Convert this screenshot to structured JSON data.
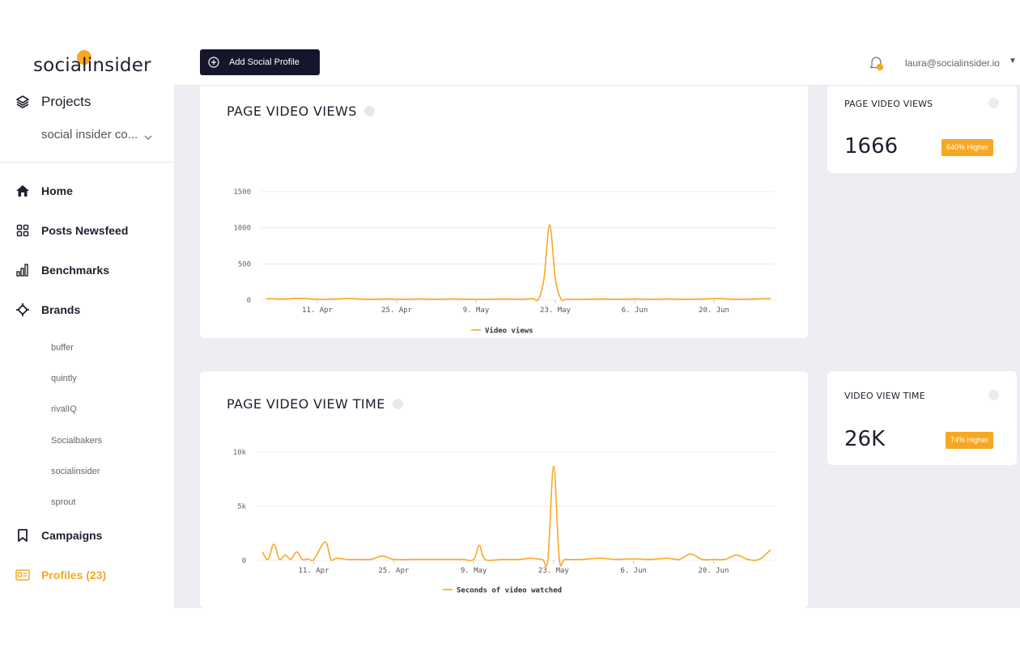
{
  "app": {
    "logo_text": "socialinsider",
    "brand_color": "#f7a823",
    "dark_color": "#15152b"
  },
  "sidebar": {
    "projects_label": "Projects",
    "project_selector": "social insider co...",
    "nav": [
      {
        "label": "Home",
        "icon": "home-icon"
      },
      {
        "label": "Posts Newsfeed",
        "icon": "grid-icon"
      },
      {
        "label": "Benchmarks",
        "icon": "bar-chart-icon"
      },
      {
        "label": "Brands",
        "icon": "crosshair-icon"
      }
    ],
    "brands": [
      "buffer",
      "quintly",
      "rivalIQ",
      "Socialbakers",
      "socialinsider",
      "sprout"
    ],
    "campaigns_label": "Campaigns",
    "profiles_label": "Profiles (23)"
  },
  "topbar": {
    "add_profile_label": "Add Social Profile",
    "user_email": "laura@socialinsider.io"
  },
  "cards": {
    "video_views": {
      "title": "PAGE VIDEO VIEWS",
      "legend": "Video views"
    },
    "video_view_time": {
      "title": "PAGE VIDEO VIEW TIME",
      "legend": "Seconds of video watched"
    }
  },
  "stats": {
    "views": {
      "title": "PAGE VIDEO VIEWS",
      "value": "1666",
      "badge": "640% Higher"
    },
    "time": {
      "title": "VIDEO VIEW TIME",
      "value": "26K",
      "badge": "74% Higher"
    }
  },
  "chart_data": [
    {
      "type": "line",
      "title": "PAGE VIDEO VIEWS",
      "x_tick_labels": [
        "11. Apr",
        "25. Apr",
        "9. May",
        "23. May",
        "6. Jun",
        "20. Jun"
      ],
      "y_tick_labels": [
        "0",
        "500",
        "1000",
        "1500"
      ],
      "ylim": [
        0,
        1500
      ],
      "legend": "bottom-center",
      "series": [
        {
          "name": "Video views",
          "color": "#f7a823",
          "x": [
            "2 Apr",
            "5 Apr",
            "8 Apr",
            "11 Apr",
            "14 Apr",
            "17 Apr",
            "20 Apr",
            "23 Apr",
            "26 Apr",
            "29 Apr",
            "2 May",
            "5 May",
            "8 May",
            "11 May",
            "14 May",
            "17 May",
            "19 May",
            "20 May",
            "21 May",
            "22 May",
            "23 May",
            "24 May",
            "25 May",
            "28 May",
            "31 May",
            "3 Jun",
            "6 Jun",
            "9 Jun",
            "12 Jun",
            "15 Jun",
            "18 Jun",
            "21 Jun",
            "24 Jun",
            "27 Jun",
            "30 Jun"
          ],
          "values": [
            20,
            15,
            25,
            10,
            15,
            20,
            10,
            15,
            10,
            15,
            10,
            15,
            10,
            10,
            15,
            10,
            20,
            10,
            300,
            1040,
            300,
            15,
            10,
            10,
            15,
            10,
            15,
            10,
            15,
            10,
            15,
            20,
            10,
            15,
            20
          ]
        }
      ]
    },
    {
      "type": "line",
      "title": "PAGE VIDEO VIEW TIME",
      "x_tick_labels": [
        "11. Apr",
        "25. Apr",
        "9. May",
        "23. May",
        "6. Jun",
        "20. Jun"
      ],
      "y_tick_labels": [
        "0",
        "5k",
        "10k"
      ],
      "ylim": [
        0,
        10000
      ],
      "legend": "bottom-center",
      "series": [
        {
          "name": "Seconds of video watched",
          "color": "#f7a823",
          "x": [
            "2 Apr",
            "3 Apr",
            "4 Apr",
            "5 Apr",
            "6 Apr",
            "7 Apr",
            "8 Apr",
            "9 Apr",
            "10 Apr",
            "11 Apr",
            "13 Apr",
            "14 Apr",
            "15 Apr",
            "17 Apr",
            "19 Apr",
            "21 Apr",
            "23 Apr",
            "25 Apr",
            "28 Apr",
            "1 May",
            "4 May",
            "7 May",
            "9 May",
            "10 May",
            "11 May",
            "14 May",
            "17 May",
            "19 May",
            "21 May",
            "22 May",
            "23 May",
            "24 May",
            "25 May",
            "28 May",
            "31 May",
            "3 Jun",
            "6 Jun",
            "9 Jun",
            "12 Jun",
            "14 Jun",
            "16 Jun",
            "18 Jun",
            "20 Jun",
            "22 Jun",
            "24 Jun",
            "26 Jun",
            "28 Jun",
            "30 Jun"
          ],
          "values": [
            800,
            100,
            1500,
            100,
            500,
            100,
            800,
            100,
            150,
            100,
            1700,
            100,
            200,
            100,
            100,
            100,
            400,
            100,
            100,
            100,
            100,
            100,
            100,
            1400,
            100,
            100,
            100,
            200,
            100,
            100,
            8700,
            150,
            100,
            100,
            200,
            100,
            150,
            100,
            200,
            100,
            600,
            100,
            100,
            100,
            500,
            100,
            100,
            1000
          ]
        }
      ]
    }
  ]
}
